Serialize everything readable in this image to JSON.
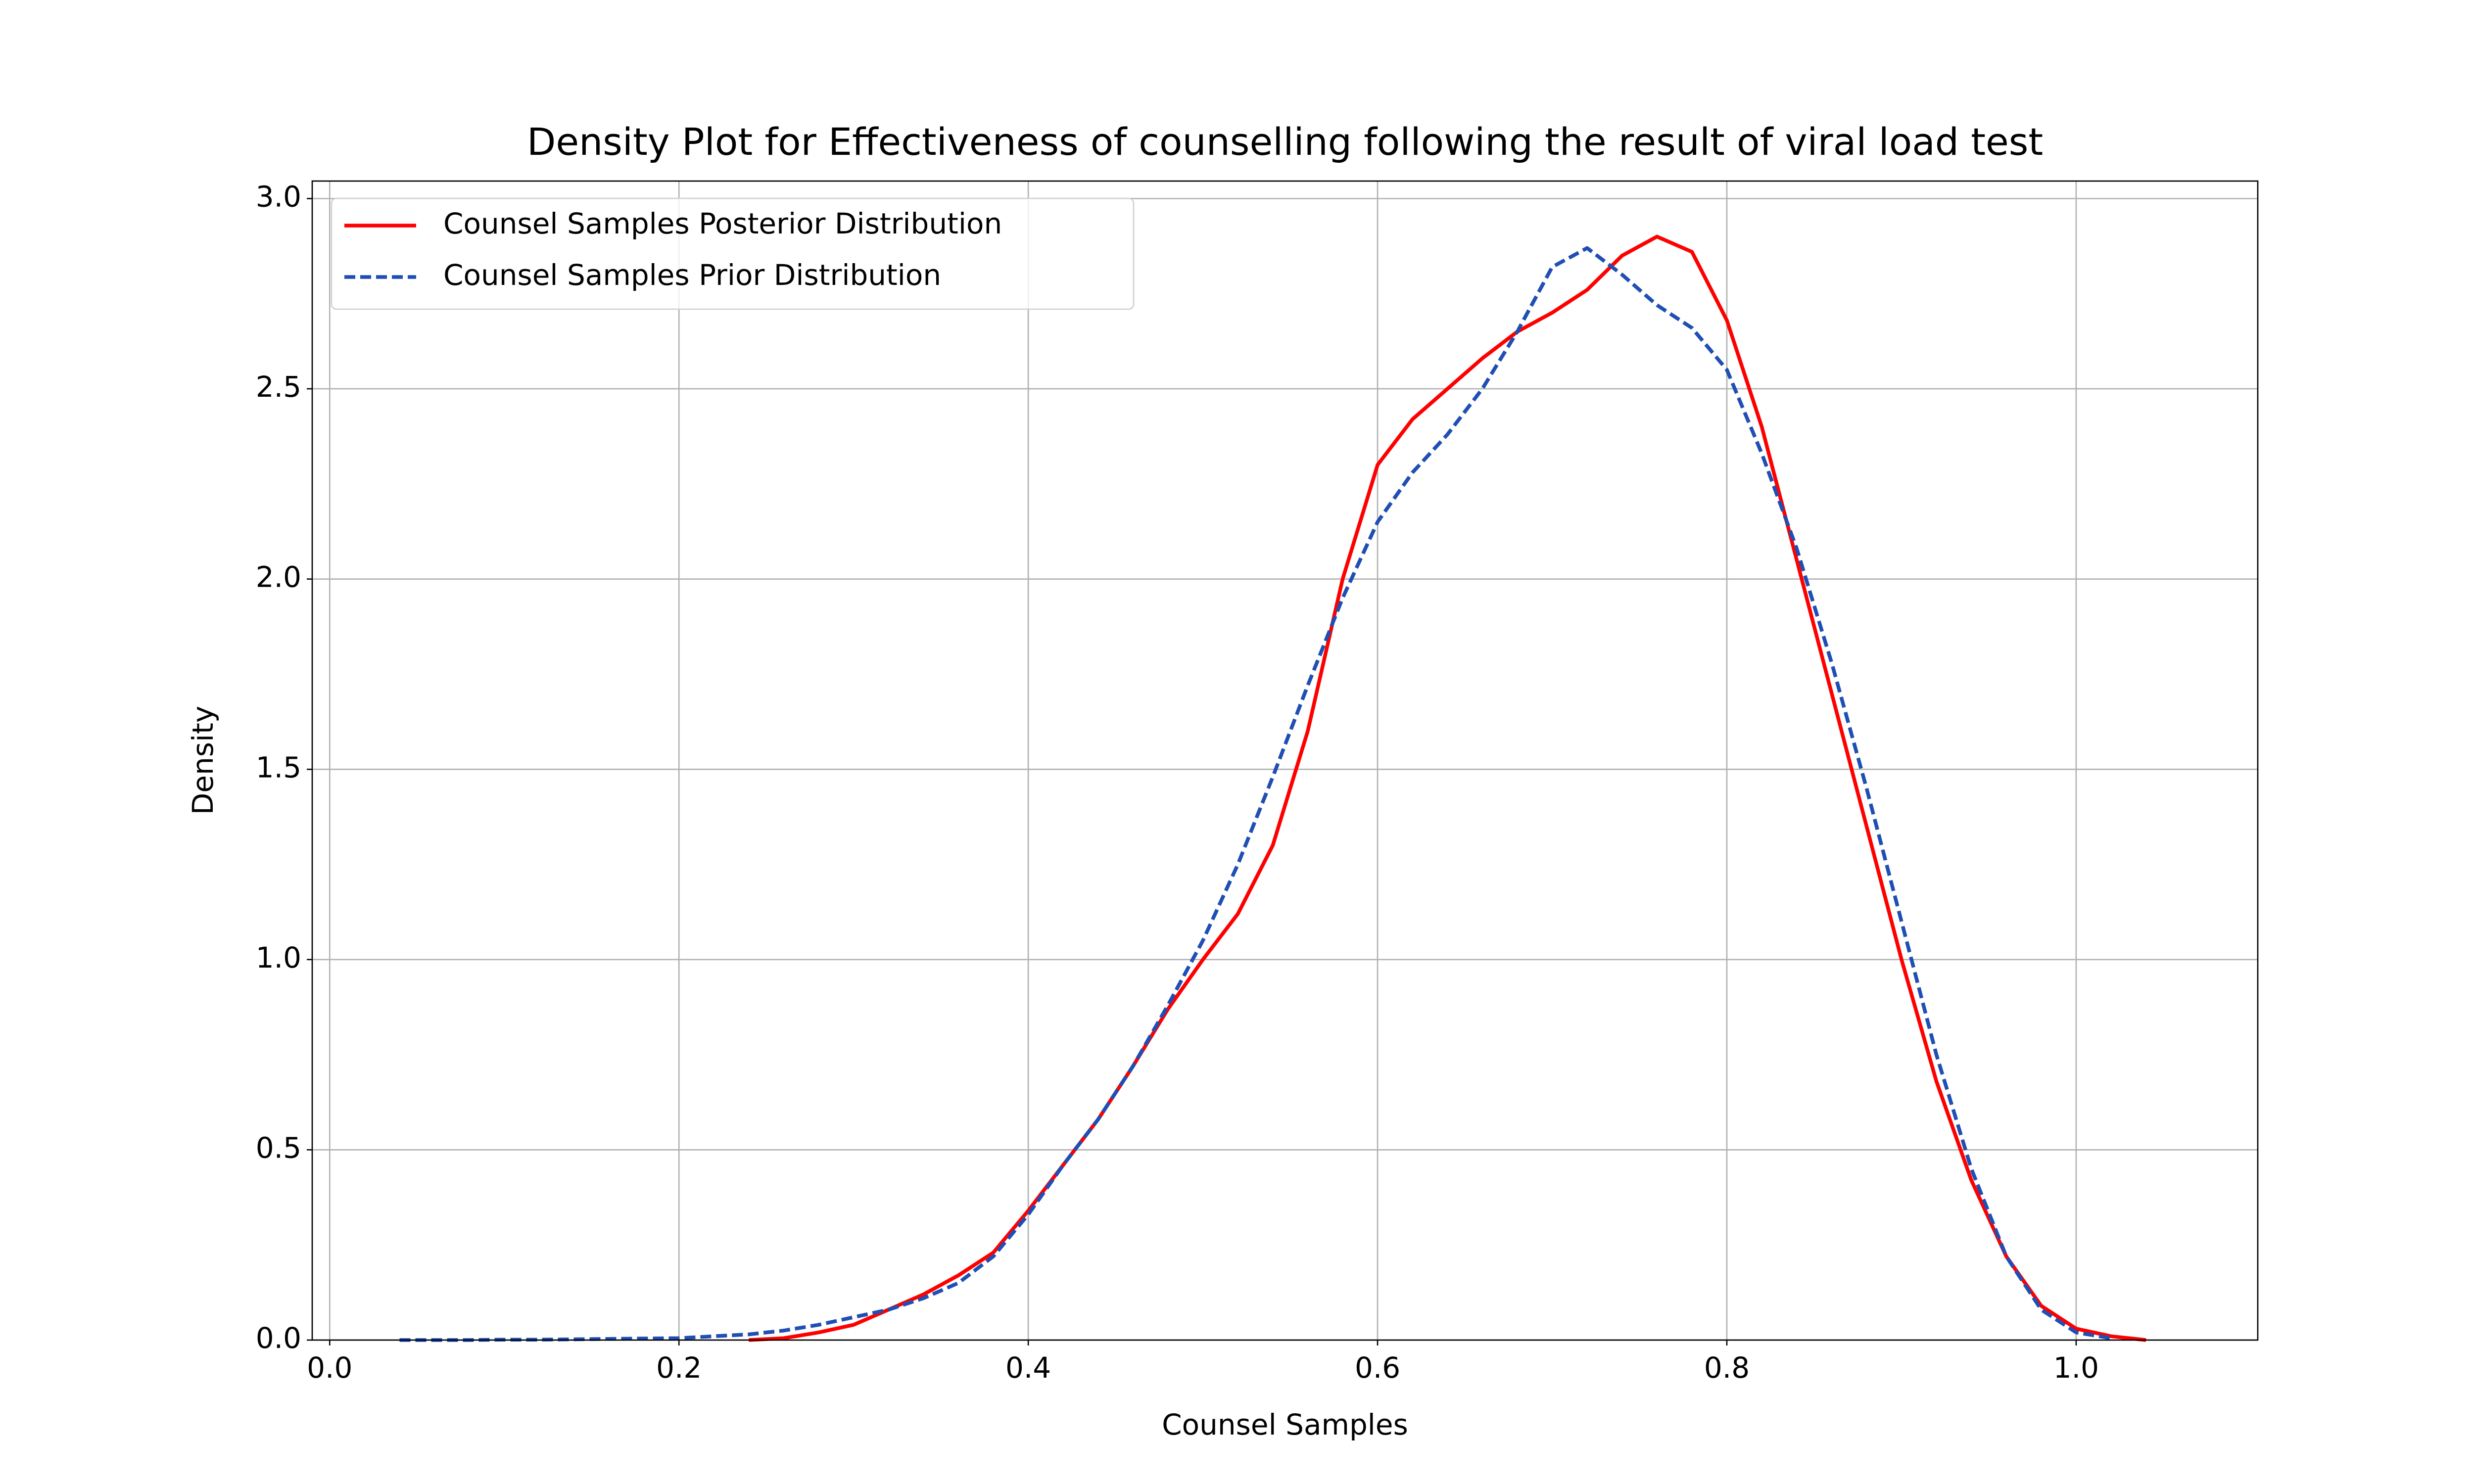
{
  "chart_data": {
    "type": "line",
    "title": "Density Plot for Effectiveness of counselling following the result of viral load test",
    "xlabel": "Counsel Samples",
    "ylabel": "Density",
    "x": [
      0.04,
      0.06,
      0.08,
      0.1,
      0.12,
      0.14,
      0.16,
      0.18,
      0.2,
      0.22,
      0.24,
      0.26,
      0.28,
      0.3,
      0.32,
      0.34,
      0.36,
      0.38,
      0.4,
      0.42,
      0.44,
      0.46,
      0.48,
      0.5,
      0.52,
      0.54,
      0.56,
      0.58,
      0.6,
      0.62,
      0.64,
      0.66,
      0.68,
      0.7,
      0.72,
      0.74,
      0.76,
      0.78,
      0.8,
      0.82,
      0.84,
      0.86,
      0.88,
      0.9,
      0.92,
      0.94,
      0.96,
      0.98,
      1.0,
      1.02,
      1.04
    ],
    "series": [
      {
        "name": "Counsel Samples Posterior Distribution",
        "color": "#ff0000",
        "linestyle": "solid",
        "values": [
          null,
          null,
          null,
          null,
          null,
          null,
          null,
          null,
          null,
          null,
          0.0,
          0.005,
          0.02,
          0.04,
          0.08,
          0.12,
          0.17,
          0.23,
          0.34,
          0.46,
          0.58,
          0.72,
          0.87,
          1.0,
          1.12,
          1.3,
          1.6,
          2.0,
          2.3,
          2.42,
          2.5,
          2.58,
          2.65,
          2.7,
          2.76,
          2.85,
          2.9,
          2.86,
          2.68,
          2.4,
          2.05,
          1.7,
          1.35,
          1.0,
          0.68,
          0.42,
          0.22,
          0.09,
          0.03,
          0.01,
          0.0
        ]
      },
      {
        "name": "Counsel Samples Prior Distribution",
        "color": "#1f4fb4",
        "linestyle": "dashed",
        "values": [
          0.0,
          0.0,
          0.0,
          0.001,
          0.001,
          0.002,
          0.003,
          0.004,
          0.005,
          0.01,
          0.015,
          0.025,
          0.04,
          0.06,
          0.08,
          0.11,
          0.15,
          0.22,
          0.33,
          0.46,
          0.58,
          0.72,
          0.88,
          1.05,
          1.25,
          1.48,
          1.72,
          1.95,
          2.15,
          2.28,
          2.38,
          2.5,
          2.65,
          2.82,
          2.87,
          2.8,
          2.72,
          2.66,
          2.55,
          2.33,
          2.08,
          1.78,
          1.45,
          1.1,
          0.75,
          0.45,
          0.22,
          0.08,
          0.02,
          0.005,
          null
        ]
      }
    ],
    "xlim": [
      -0.01,
      1.104
    ],
    "ylim": [
      0,
      3.046
    ],
    "xticks": [
      {
        "value": 0,
        "label": "0.0"
      },
      0.2,
      0.4,
      0.6,
      0.8,
      {
        "value": 1,
        "label": "1.0"
      }
    ],
    "yticks": [
      {
        "value": 0,
        "label": "0.0"
      },
      0.5,
      {
        "value": 1,
        "label": "1.0"
      },
      1.5,
      {
        "value": 2,
        "label": "2.0"
      },
      2.5,
      {
        "value": 3,
        "label": "3.0"
      }
    ],
    "grid": true,
    "legend": "upper left"
  }
}
